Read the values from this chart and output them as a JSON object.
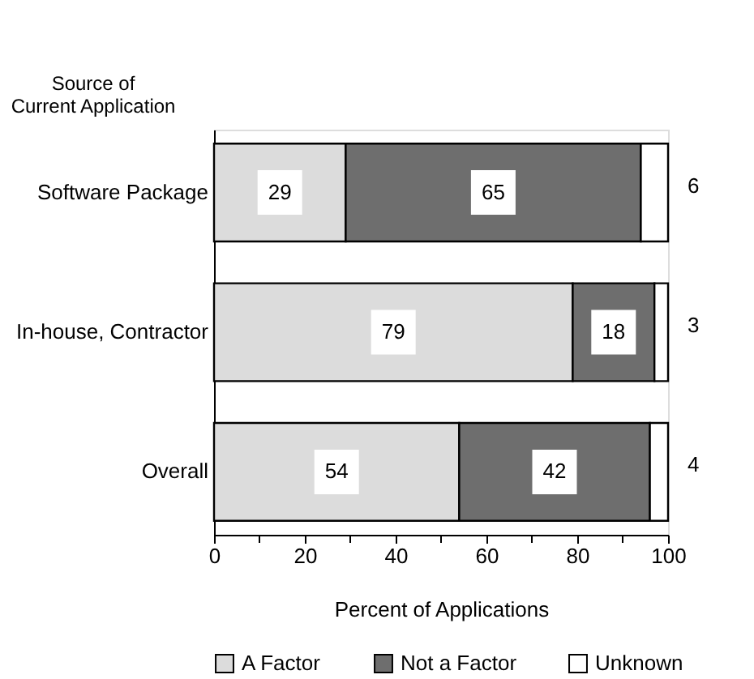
{
  "chart_data": {
    "type": "bar",
    "orientation": "horizontal",
    "stacked": true,
    "xlabel": "Percent of Applications",
    "ylabel": "Source of Current Application",
    "categories": [
      "Software Package",
      "In-house, Contractor",
      "Overall"
    ],
    "series": [
      {
        "name": "A Factor",
        "color": "#dcdcdc",
        "values": [
          29,
          79,
          54
        ]
      },
      {
        "name": "Not a Factor",
        "color": "#6e6e6e",
        "values": [
          65,
          18,
          42
        ]
      },
      {
        "name": "Unknown",
        "color": "#ffffff",
        "values": [
          6,
          3,
          4
        ]
      }
    ],
    "xlim": [
      0,
      100
    ],
    "xticks": [
      0,
      {
        "value": 10,
        "label": null
      },
      20,
      {
        "value": 30,
        "label": null
      },
      40,
      {
        "value": 50,
        "label": null
      },
      60,
      {
        "value": 70,
        "label": null
      },
      80,
      {
        "value": 90,
        "label": null
      },
      100
    ],
    "data_labels": true,
    "legend": "bottom",
    "grid": false
  }
}
